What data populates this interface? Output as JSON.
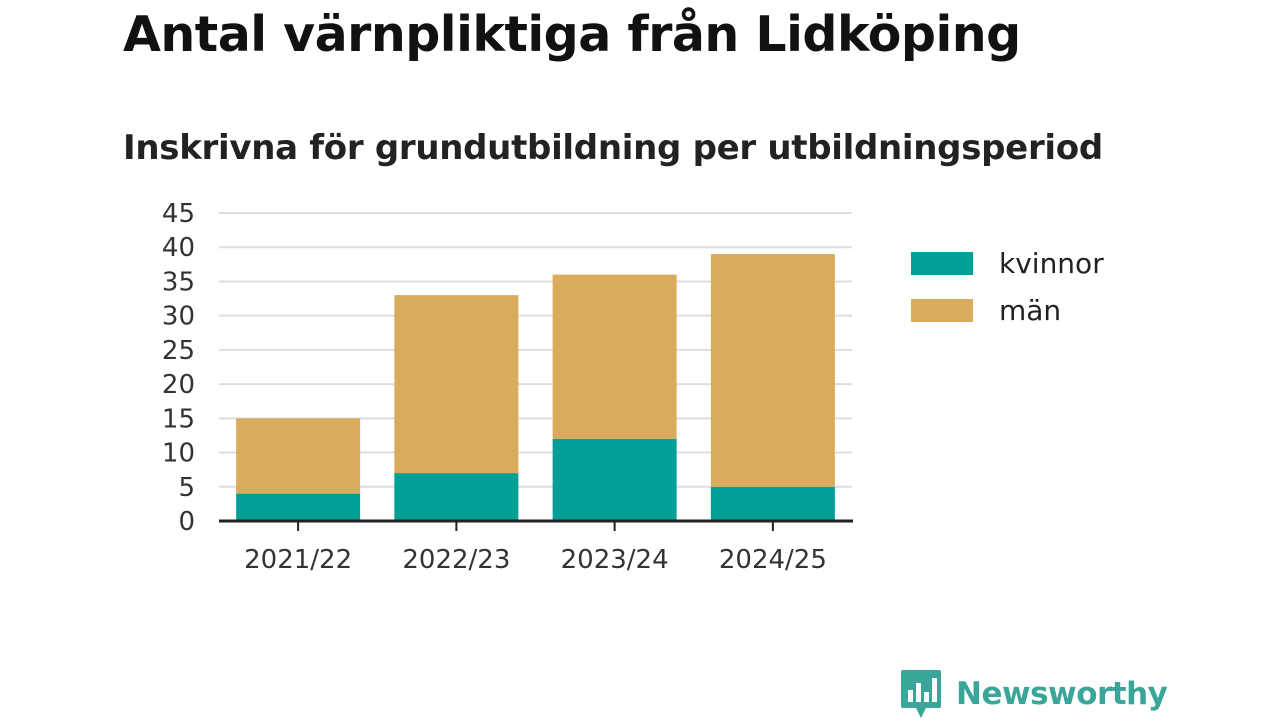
{
  "title": "Antal värnpliktiga från Lidköping",
  "subtitle": "Inskrivna för grundutbildning per utbildningsperiod",
  "brand": {
    "name": "Newsworthy",
    "icon": "newsworthy-chart-bubble-icon",
    "color": "#3aa69a"
  },
  "colors": {
    "kvinnor": "#00a096",
    "man": "#d9ac5b",
    "grid": "#dddddd",
    "axis": "#222222"
  },
  "chart_data": {
    "type": "bar",
    "stacked": true,
    "categories": [
      "2021/22",
      "2022/23",
      "2023/24",
      "2024/25"
    ],
    "series": [
      {
        "name": "kvinnor",
        "values": [
          4,
          7,
          12,
          5
        ]
      },
      {
        "name": "män",
        "values": [
          11,
          26,
          24,
          34
        ]
      }
    ],
    "ylim": [
      0,
      45
    ],
    "yticks": [
      0,
      5,
      10,
      15,
      20,
      25,
      30,
      35,
      40,
      45
    ],
    "grid": true,
    "legend_position": "right"
  }
}
